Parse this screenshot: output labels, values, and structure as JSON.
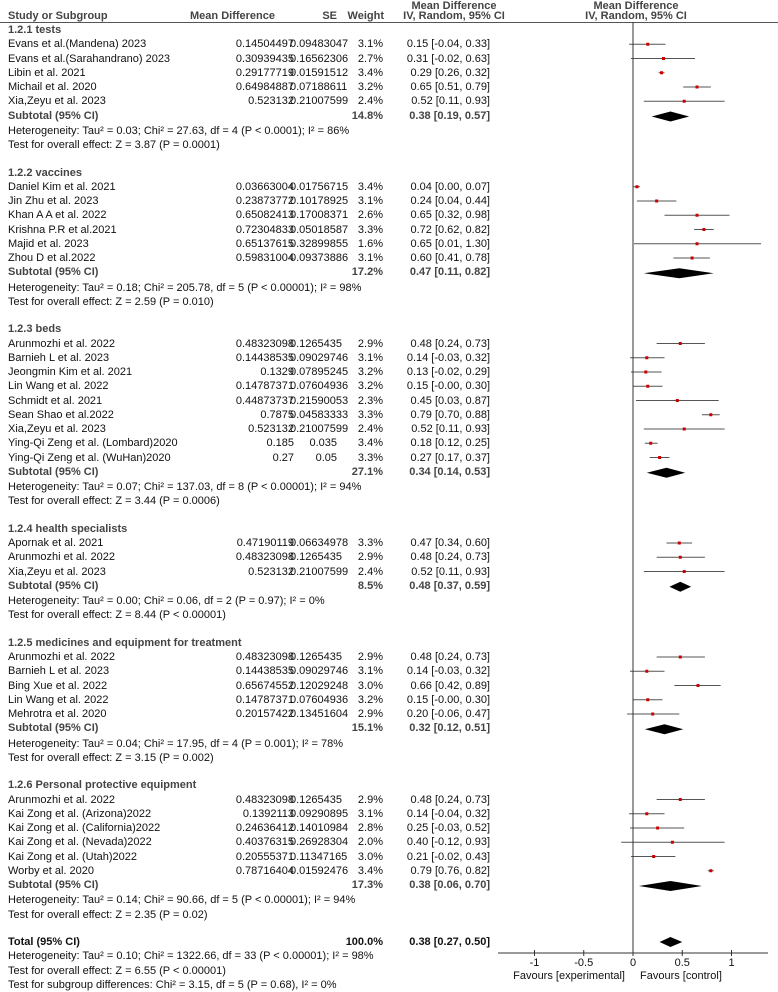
{
  "header": {
    "study_col": "Study or Subgroup",
    "md_col": "Mean Difference",
    "se_col": "SE",
    "weight_col": "Weight",
    "ci_col_line1": "Mean Difference",
    "ci_col_line2": "IV, Random, 95% CI",
    "plot_col_line1": "Mean Difference",
    "plot_col_line2": "IV, Random, 95% CI"
  },
  "chart_data": {
    "type": "forest",
    "xlim": [
      -1.37,
      1.37
    ],
    "xticks": [
      "-1",
      "-0.5",
      "0",
      "0.5",
      "1"
    ],
    "xlabel_left": "Favours [experimental]",
    "xlabel_right": "Favours [control]",
    "colors": {
      "study_marker": "#cc0000",
      "ci_line": "#555555",
      "diamond": "#000000"
    },
    "groups": [
      {
        "title": "1.2.1 tests",
        "studies": [
          {
            "name": "Evans et al.(Mandena) 2023",
            "md": "0.14504497",
            "se": "0.09483047",
            "weight": "3.1%",
            "ci": "0.15 [-0.04, 0.33]"
          },
          {
            "name": "Evans et al.(Sarahandrano) 2023",
            "md": "0.30939435",
            "se": "0.16562306",
            "weight": "2.7%",
            "ci": "0.31 [-0.02, 0.63]"
          },
          {
            "name": "Libin et al. 2021",
            "md": "0.29177719",
            "se": "0.01591512",
            "weight": "3.4%",
            "ci": "0.29 [0.26, 0.32]"
          },
          {
            "name": "Michail et al. 2020",
            "md": "0.64984887",
            "se": "0.07188611",
            "weight": "3.2%",
            "ci": "0.65 [0.51, 0.79]"
          },
          {
            "name": "Xia,Zeyu et al. 2023",
            "md": "0.523132",
            "se": "0.21007599",
            "weight": "2.4%",
            "ci": "0.52 [0.11, 0.93]"
          }
        ],
        "subtotal": {
          "label": "Subtotal (95% CI)",
          "weight": "14.8%",
          "ci": "0.38 [0.19, 0.57]"
        },
        "heterogeneity": "Heterogeneity: Tau² = 0.03; Chi² = 27.63, df = 4 (P < 0.0001); I² = 86%",
        "overall": "Test for overall effect: Z = 3.87 (P = 0.0001)"
      },
      {
        "title": "1.2.2 vaccines",
        "studies": [
          {
            "name": "Daniel Kim et al. 2021",
            "md": "0.03663004",
            "se": "0.01756715",
            "weight": "3.4%",
            "ci": "0.04 [0.00, 0.07]"
          },
          {
            "name": "Jin Zhu et al. 2023",
            "md": "0.23873772",
            "se": "0.10178925",
            "weight": "3.1%",
            "ci": "0.24 [0.04, 0.44]"
          },
          {
            "name": "Khan A A et al. 2022",
            "md": "0.65082413",
            "se": "0.17008371",
            "weight": "2.6%",
            "ci": "0.65 [0.32, 0.98]"
          },
          {
            "name": "Krishna P.R et al.2021",
            "md": "0.72304833",
            "se": "0.05018587",
            "weight": "3.3%",
            "ci": "0.72 [0.62, 0.82]"
          },
          {
            "name": "Majid et al. 2023",
            "md": "0.65137615",
            "se": "0.32899855",
            "weight": "1.6%",
            "ci": "0.65 [0.01, 1.30]"
          },
          {
            "name": "Zhou D et al.2022",
            "md": "0.59831004",
            "se": "0.09373886",
            "weight": "3.1%",
            "ci": "0.60 [0.41, 0.78]"
          }
        ],
        "subtotal": {
          "label": "Subtotal (95% CI)",
          "weight": "17.2%",
          "ci": "0.47 [0.11, 0.82]"
        },
        "heterogeneity": "Heterogeneity: Tau² = 0.18; Chi² = 205.78, df = 5 (P < 0.00001); I² = 98%",
        "overall": "Test for overall effect: Z = 2.59 (P = 0.010)"
      },
      {
        "title": "1.2.3 beds",
        "studies": [
          {
            "name": "Arunmozhi et al. 2022",
            "md": "0.48323098",
            "se": "0.1265435",
            "weight": "2.9%",
            "ci": "0.48 [0.24, 0.73]"
          },
          {
            "name": "Barnieh L et al. 2023",
            "md": "0.14438535",
            "se": "0.09029746",
            "weight": "3.1%",
            "ci": "0.14 [-0.03, 0.32]"
          },
          {
            "name": "Jeongmin Kim et al. 2021",
            "md": "0.1329",
            "se": "0.07895245",
            "weight": "3.2%",
            "ci": "0.13 [-0.02, 0.29]"
          },
          {
            "name": "Lin Wang et al. 2022",
            "md": "0.14787371",
            "se": "0.07604936",
            "weight": "3.2%",
            "ci": "0.15 [-0.00, 0.30]"
          },
          {
            "name": "Schmidt et al. 2021",
            "md": "0.44873737",
            "se": "0.21590053",
            "weight": "2.3%",
            "ci": "0.45 [0.03, 0.87]"
          },
          {
            "name": "Sean Shao et al.2022",
            "md": "0.7875",
            "se": "0.04583333",
            "weight": "3.3%",
            "ci": "0.79 [0.70, 0.88]"
          },
          {
            "name": "Xia,Zeyu et al. 2023",
            "md": "0.523132",
            "se": "0.21007599",
            "weight": "2.4%",
            "ci": "0.52 [0.11, 0.93]"
          },
          {
            "name": "Ying-Qi Zeng et al. (Lombard)2020",
            "md": "0.185",
            "se": "0.035",
            "weight": "3.4%",
            "ci": "0.18 [0.12, 0.25]"
          },
          {
            "name": "Ying-Qi Zeng et al. (WuHan)2020",
            "md": "0.27",
            "se": "0.05",
            "weight": "3.3%",
            "ci": "0.27 [0.17, 0.37]"
          }
        ],
        "subtotal": {
          "label": "Subtotal (95% CI)",
          "weight": "27.1%",
          "ci": "0.34 [0.14, 0.53]"
        },
        "heterogeneity": "Heterogeneity: Tau² = 0.07; Chi² = 137.03, df = 8 (P < 0.00001); I² = 94%",
        "overall": "Test for overall effect: Z = 3.44 (P = 0.0006)"
      },
      {
        "title": "1.2.4 health specialists",
        "studies": [
          {
            "name": "Apornak et al. 2021",
            "md": "0.47190119",
            "se": "0.06634978",
            "weight": "3.3%",
            "ci": "0.47 [0.34, 0.60]"
          },
          {
            "name": "Arunmozhi et al. 2022",
            "md": "0.48323098",
            "se": "0.1265435",
            "weight": "2.9%",
            "ci": "0.48 [0.24, 0.73]"
          },
          {
            "name": "Xia,Zeyu et al. 2023",
            "md": "0.523132",
            "se": "0.21007599",
            "weight": "2.4%",
            "ci": "0.52 [0.11, 0.93]"
          }
        ],
        "subtotal": {
          "label": "Subtotal (95% CI)",
          "weight": "8.5%",
          "ci": "0.48 [0.37, 0.59]"
        },
        "heterogeneity": "Heterogeneity: Tau² = 0.00; Chi² = 0.06, df = 2 (P = 0.97); I² = 0%",
        "overall": "Test for overall effect: Z = 8.44 (P < 0.00001)"
      },
      {
        "title": "1.2.5 medicines and equipment for treatment",
        "studies": [
          {
            "name": "Arunmozhi et al. 2022",
            "md": "0.48323098",
            "se": "0.1265435",
            "weight": "2.9%",
            "ci": "0.48 [0.24, 0.73]"
          },
          {
            "name": "Barnieh L et al. 2023",
            "md": "0.14438535",
            "se": "0.09029746",
            "weight": "3.1%",
            "ci": "0.14 [-0.03, 0.32]"
          },
          {
            "name": "Bing Xue et al. 2022",
            "md": "0.65674552",
            "se": "0.12029248",
            "weight": "3.0%",
            "ci": "0.66 [0.42, 0.89]"
          },
          {
            "name": "Lin Wang et al. 2022",
            "md": "0.14787371",
            "se": "0.07604936",
            "weight": "3.2%",
            "ci": "0.15 [-0.00, 0.30]"
          },
          {
            "name": "Mehrotra et al. 2020",
            "md": "0.20157422",
            "se": "0.13451604",
            "weight": "2.9%",
            "ci": "0.20 [-0.06, 0.47]"
          }
        ],
        "subtotal": {
          "label": "Subtotal (95% CI)",
          "weight": "15.1%",
          "ci": "0.32 [0.12, 0.51]"
        },
        "heterogeneity": "Heterogeneity: Tau² = 0.04; Chi² = 17.95, df = 4 (P = 0.001); I² = 78%",
        "overall": "Test for overall effect: Z = 3.15 (P = 0.002)"
      },
      {
        "title": "1.2.6 Personal protective equipment",
        "studies": [
          {
            "name": "Arunmozhi et al. 2022",
            "md": "0.48323098",
            "se": "0.1265435",
            "weight": "2.9%",
            "ci": "0.48 [0.24, 0.73]"
          },
          {
            "name": "Kai Zong et al. (Arizona)2022",
            "md": "0.1392113",
            "se": "0.09290895",
            "weight": "3.1%",
            "ci": "0.14 [-0.04, 0.32]"
          },
          {
            "name": "Kai Zong et al. (California)2022",
            "md": "0.24636412",
            "se": "0.14010984",
            "weight": "2.8%",
            "ci": "0.25 [-0.03, 0.52]"
          },
          {
            "name": "Kai Zong et al. (Nevada)2022",
            "md": "0.40376315",
            "se": "0.26928304",
            "weight": "2.0%",
            "ci": "0.40 [-0.12, 0.93]"
          },
          {
            "name": "Kai Zong et al. (Utah)2022",
            "md": "0.20555371",
            "se": "0.11347165",
            "weight": "3.0%",
            "ci": "0.21 [-0.02, 0.43]"
          },
          {
            "name": "Worby et al. 2020",
            "md": "0.78716404",
            "se": "0.01592476",
            "weight": "3.4%",
            "ci": "0.79 [0.76, 0.82]"
          }
        ],
        "subtotal": {
          "label": "Subtotal (95% CI)",
          "weight": "17.3%",
          "ci": "0.38 [0.06, 0.70]"
        },
        "heterogeneity": "Heterogeneity: Tau² = 0.14; Chi² = 90.66, df = 5 (P < 0.00001); I² = 94%",
        "overall": "Test for overall effect: Z = 2.35 (P = 0.02)"
      }
    ],
    "total": {
      "label": "Total (95% CI)",
      "weight": "100.0%",
      "ci": "0.38 [0.27, 0.50]",
      "heterogeneity": "Heterogeneity: Tau² = 0.10; Chi² = 1322.66, df = 33 (P < 0.00001); I² = 98%",
      "overall": "Test for overall effect: Z = 6.55 (P < 0.00001)",
      "subgroup_test": "Test for subgroup differences: Chi² = 3.15, df = 5 (P = 0.68), I² = 0%"
    }
  }
}
